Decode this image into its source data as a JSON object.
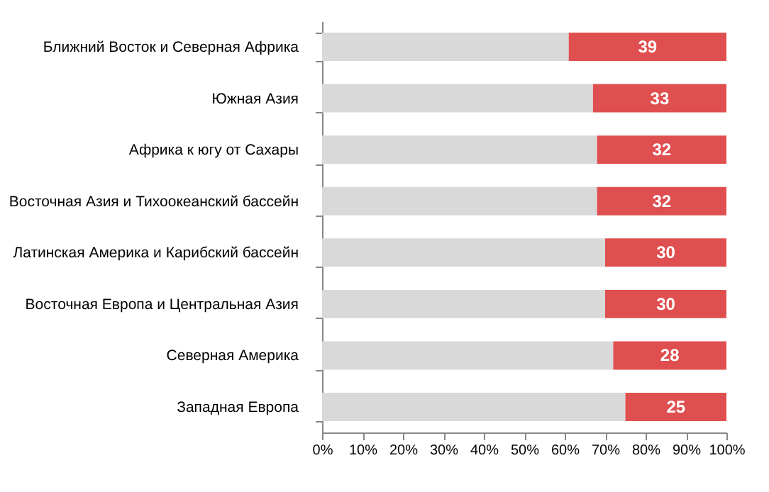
{
  "chart_data": {
    "type": "bar",
    "orientation": "horizontal",
    "stacked": true,
    "categories": [
      "Ближний Восток и Северная Африка",
      "Южная Азия",
      "Африка к югу от Сахары",
      "Восточная Азия и Тихоокеанский бассейн",
      "Латинская Америка и Карибский бассейн",
      "Восточная Европа и Центральная Азия",
      "Северная Америка",
      "Западная Европа"
    ],
    "series": [
      {
        "color": "#d9d9d9",
        "values": [
          61,
          67,
          68,
          68,
          70,
          70,
          72,
          75
        ]
      },
      {
        "color": "#e04f4f",
        "values": [
          39,
          33,
          32,
          32,
          30,
          30,
          28,
          25
        ],
        "value_labels": [
          "39",
          "33",
          "32",
          "32",
          "30",
          "30",
          "28",
          "25"
        ]
      }
    ],
    "xlim": [
      0,
      100
    ],
    "xticks": [
      {
        "value": 0,
        "label": "0%"
      },
      {
        "value": 10,
        "label": "10%"
      },
      {
        "value": 20,
        "label": "20%"
      },
      {
        "value": 30,
        "label": "30%"
      },
      {
        "value": 40,
        "label": "40%"
      },
      {
        "value": 50,
        "label": "50%"
      },
      {
        "value": 60,
        "label": "60%"
      },
      {
        "value": 70,
        "label": "70%"
      },
      {
        "value": 80,
        "label": "80%"
      },
      {
        "value": 90,
        "label": "90%"
      },
      {
        "value": 100,
        "label": "100%"
      }
    ],
    "grid": false,
    "legend": false
  }
}
